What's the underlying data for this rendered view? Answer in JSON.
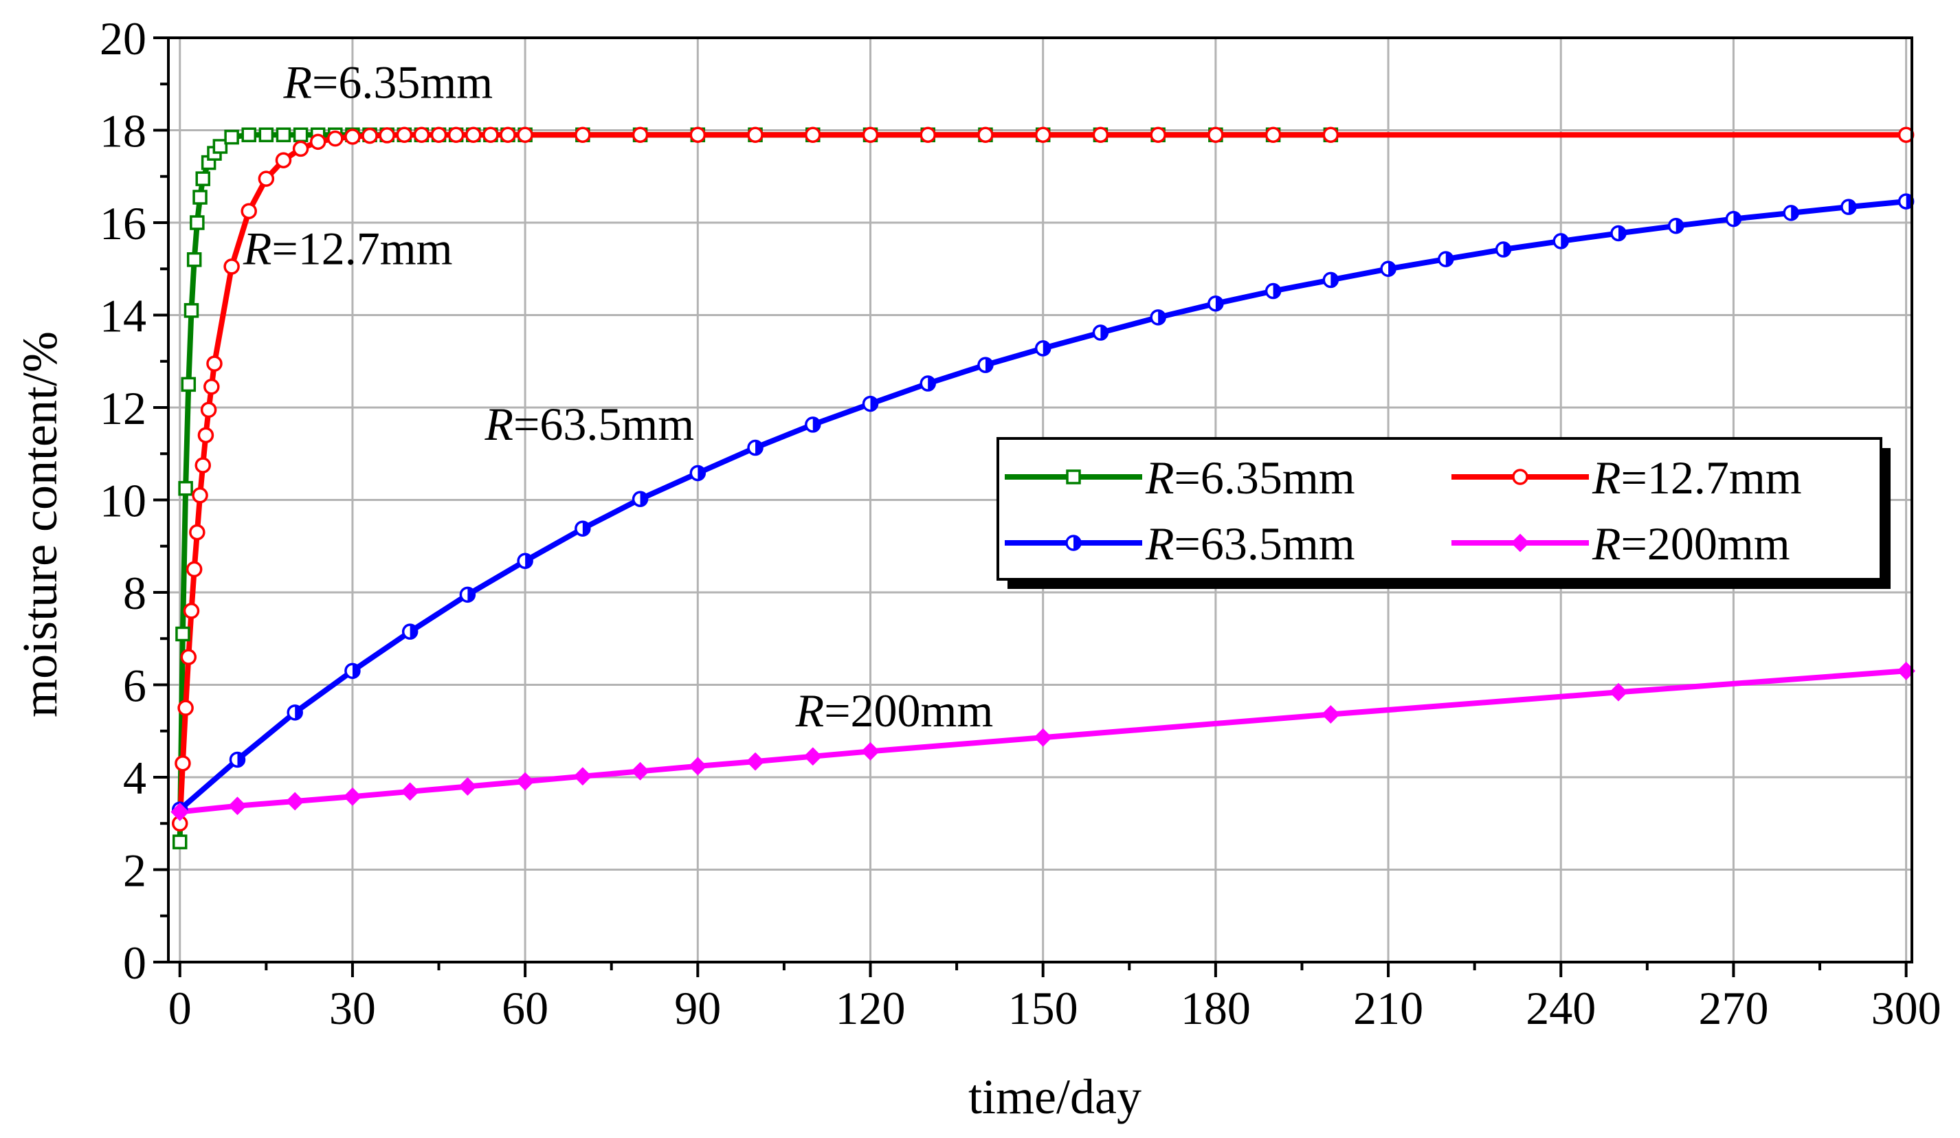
{
  "chart_data": {
    "type": "line",
    "title": "",
    "xlabel": "time/day",
    "ylabel": "moisture content/%",
    "xlim": [
      -2,
      301
    ],
    "ylim": [
      0,
      20
    ],
    "xticks": [
      0,
      30,
      60,
      90,
      120,
      150,
      180,
      210,
      240,
      270,
      300
    ],
    "yticks": [
      0,
      2,
      4,
      6,
      8,
      10,
      12,
      14,
      16,
      18,
      20
    ],
    "grid": true,
    "legend_position": "center-right",
    "series": [
      {
        "name_prefix": "R",
        "name_suffix": "=6.35mm",
        "color": "#008000",
        "marker": "square-open",
        "x": [
          0,
          0.5,
          1,
          1.5,
          2,
          2.5,
          3,
          3.5,
          4,
          5,
          6,
          7,
          9,
          12,
          15,
          18,
          21,
          24,
          27,
          30,
          33,
          36,
          39,
          42,
          45,
          48,
          51,
          54,
          57,
          60,
          70,
          80,
          90,
          100,
          110,
          120,
          130,
          140,
          150,
          160,
          170,
          180,
          190,
          200
        ],
        "y": [
          2.6,
          7.1,
          10.25,
          12.5,
          14.1,
          15.2,
          16.0,
          16.55,
          16.95,
          17.3,
          17.5,
          17.65,
          17.85,
          17.9,
          17.9,
          17.9,
          17.9,
          17.9,
          17.9,
          17.9,
          17.9,
          17.9,
          17.9,
          17.9,
          17.9,
          17.9,
          17.9,
          17.9,
          17.9,
          17.9,
          17.9,
          17.9,
          17.9,
          17.9,
          17.9,
          17.9,
          17.9,
          17.9,
          17.9,
          17.9,
          17.9,
          17.9,
          17.9,
          17.9
        ]
      },
      {
        "name_prefix": "R",
        "name_suffix": "=12.7mm",
        "color": "#ff0000",
        "marker": "circle-open",
        "x": [
          0,
          0.5,
          1,
          1.5,
          2,
          2.5,
          3,
          3.5,
          4,
          4.5,
          5,
          5.5,
          6,
          9,
          12,
          15,
          18,
          21,
          24,
          27,
          30,
          33,
          36,
          39,
          42,
          45,
          48,
          51,
          54,
          57,
          60,
          70,
          80,
          90,
          100,
          110,
          120,
          130,
          140,
          150,
          160,
          170,
          180,
          190,
          200,
          300
        ],
        "y": [
          3.0,
          4.3,
          5.5,
          6.6,
          7.6,
          8.5,
          9.3,
          10.1,
          10.75,
          11.4,
          11.95,
          12.45,
          12.95,
          15.05,
          16.25,
          16.95,
          17.35,
          17.6,
          17.75,
          17.82,
          17.86,
          17.88,
          17.89,
          17.9,
          17.9,
          17.9,
          17.9,
          17.9,
          17.9,
          17.9,
          17.9,
          17.9,
          17.9,
          17.9,
          17.9,
          17.9,
          17.9,
          17.9,
          17.9,
          17.9,
          17.9,
          17.9,
          17.9,
          17.9,
          17.9,
          17.9
        ]
      },
      {
        "name_prefix": "R",
        "name_suffix": "=63.5mm",
        "color": "#0000ff",
        "marker": "circle-half",
        "x": [
          0,
          10,
          20,
          30,
          40,
          50,
          60,
          70,
          80,
          90,
          100,
          110,
          120,
          130,
          140,
          150,
          160,
          170,
          180,
          190,
          200,
          210,
          220,
          230,
          240,
          250,
          260,
          270,
          280,
          290,
          300
        ],
        "y": [
          3.3,
          4.38,
          5.4,
          6.3,
          7.15,
          7.95,
          8.68,
          9.38,
          10.02,
          10.58,
          11.13,
          11.63,
          12.08,
          12.52,
          12.92,
          13.28,
          13.62,
          13.95,
          14.25,
          14.52,
          14.76,
          15.0,
          15.21,
          15.42,
          15.6,
          15.77,
          15.93,
          16.08,
          16.21,
          16.34,
          16.46
        ]
      },
      {
        "name_prefix": "R",
        "name_suffix": "=200mm",
        "color": "#ff00ff",
        "marker": "diamond-filled",
        "x": [
          0,
          10,
          20,
          30,
          40,
          50,
          60,
          70,
          80,
          90,
          100,
          110,
          120,
          150,
          200,
          250,
          300
        ],
        "y": [
          3.25,
          3.38,
          3.48,
          3.58,
          3.69,
          3.8,
          3.91,
          4.02,
          4.13,
          4.24,
          4.34,
          4.45,
          4.56,
          4.86,
          5.36,
          5.84,
          6.3
        ]
      }
    ],
    "annotations": [
      {
        "prefix": "R",
        "suffix": "=6.35mm",
        "at": [
          18,
          18.7
        ]
      },
      {
        "prefix": "R",
        "suffix": "=12.7mm",
        "at": [
          11,
          15.1
        ]
      },
      {
        "prefix": "R",
        "suffix": "=63.5mm",
        "at": [
          53,
          11.3
        ]
      },
      {
        "prefix": "R",
        "suffix": "=200mm",
        "at": [
          107,
          5.1
        ]
      }
    ]
  }
}
